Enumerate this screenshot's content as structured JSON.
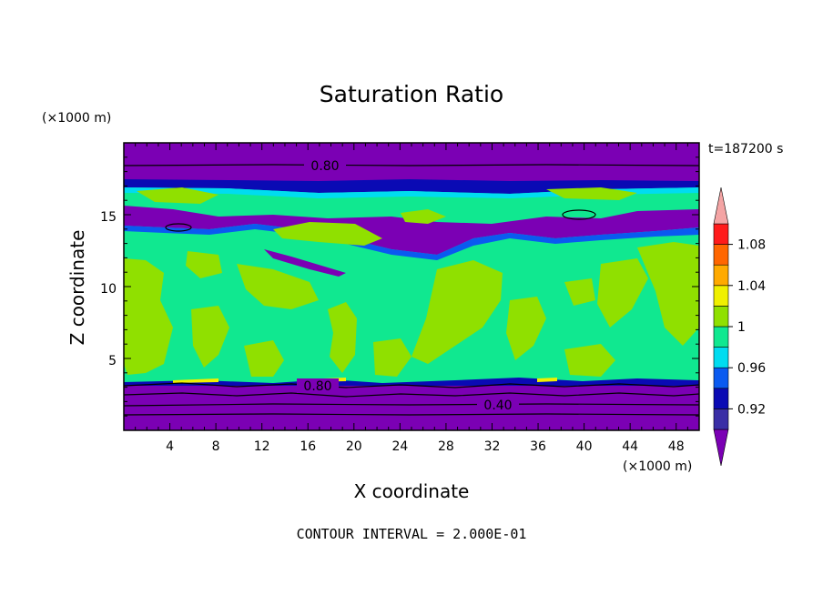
{
  "chart_data": {
    "type": "heatmap",
    "title": "Saturation Ratio",
    "xlabel": "X coordinate",
    "ylabel": "Z coordinate",
    "x_unit": "(×1000 m)",
    "y_unit": "(×1000 m)",
    "time_label": "t=187200 s",
    "footer": "CONTOUR INTERVAL = 2.000E-01",
    "xlim": [
      0,
      50
    ],
    "ylim": [
      0,
      20
    ],
    "x_ticks": [
      4,
      8,
      12,
      16,
      20,
      24,
      28,
      32,
      36,
      40,
      44,
      48
    ],
    "y_ticks": [
      5,
      10,
      15
    ],
    "x_tick_labels": [
      "4",
      "8",
      "12",
      "16",
      "20",
      "24",
      "28",
      "32",
      "36",
      "40",
      "44",
      "48"
    ],
    "y_tick_labels": [
      "5",
      "10",
      "15"
    ],
    "contour_labels": [
      "0.80",
      "0.80",
      "0.40"
    ],
    "colorbar": {
      "labels": [
        "1.08",
        "1.04",
        "1",
        "0.96",
        "0.92"
      ],
      "levels": [
        {
          "lo": null,
          "hi": 0.9,
          "color": "#7b00b4"
        },
        {
          "lo": 0.9,
          "hi": 0.92,
          "color": "#3a2ea6"
        },
        {
          "lo": 0.92,
          "hi": 0.94,
          "color": "#0a0ab4"
        },
        {
          "lo": 0.94,
          "hi": 0.96,
          "color": "#0a5af0"
        },
        {
          "lo": 0.96,
          "hi": 0.98,
          "color": "#00dcf0"
        },
        {
          "lo": 0.98,
          "hi": 1.0,
          "color": "#10e890"
        },
        {
          "lo": 1.0,
          "hi": 1.02,
          "color": "#90e000"
        },
        {
          "lo": 1.02,
          "hi": 1.04,
          "color": "#f0f000"
        },
        {
          "lo": 1.04,
          "hi": 1.06,
          "color": "#ffaa00"
        },
        {
          "lo": 1.06,
          "hi": 1.08,
          "color": "#ff6600"
        },
        {
          "lo": 1.08,
          "hi": 1.1,
          "color": "#ff1a1a"
        },
        {
          "lo": 1.1,
          "hi": null,
          "color": "#f4a4a4"
        }
      ]
    }
  }
}
